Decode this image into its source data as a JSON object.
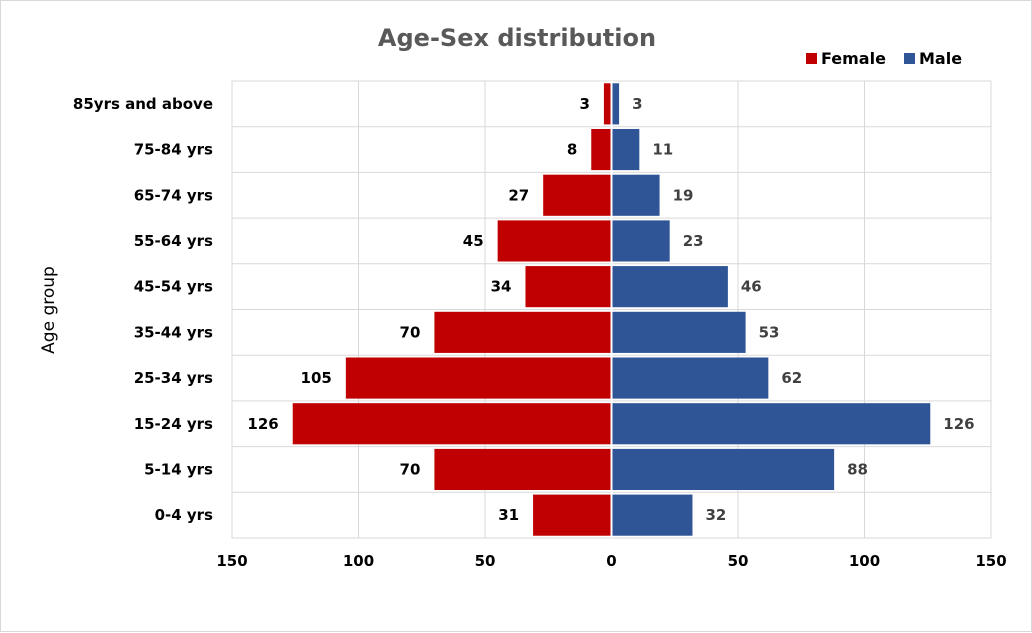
{
  "chart_data": {
    "type": "bar",
    "orientation": "horizontal",
    "layout": "population-pyramid",
    "title": "Age-Sex distribution",
    "xlabel": "",
    "ylabel": "Age group",
    "categories": [
      "85yrs and above",
      "75-84 yrs",
      "65-74 yrs",
      "55-64 yrs",
      "45-54 yrs",
      "35-44 yrs",
      "25-34 yrs",
      "15-24 yrs",
      "5-14 yrs",
      "0-4 yrs"
    ],
    "series": [
      {
        "name": "Female",
        "color": "#c00000",
        "side": "left",
        "values": [
          3,
          8,
          27,
          45,
          34,
          70,
          105,
          126,
          70,
          31
        ]
      },
      {
        "name": "Male",
        "color": "#2f5597",
        "side": "right",
        "values": [
          3,
          11,
          19,
          23,
          46,
          53,
          62,
          126,
          88,
          32
        ]
      }
    ],
    "xlim": [
      -150,
      150
    ],
    "x_ticks": [
      "150",
      "100",
      "50",
      "0",
      "50",
      "100",
      "150"
    ],
    "x_tick_values": [
      -150,
      -100,
      -50,
      0,
      50,
      100,
      150
    ],
    "grid": true,
    "legend_position": "top-right"
  }
}
